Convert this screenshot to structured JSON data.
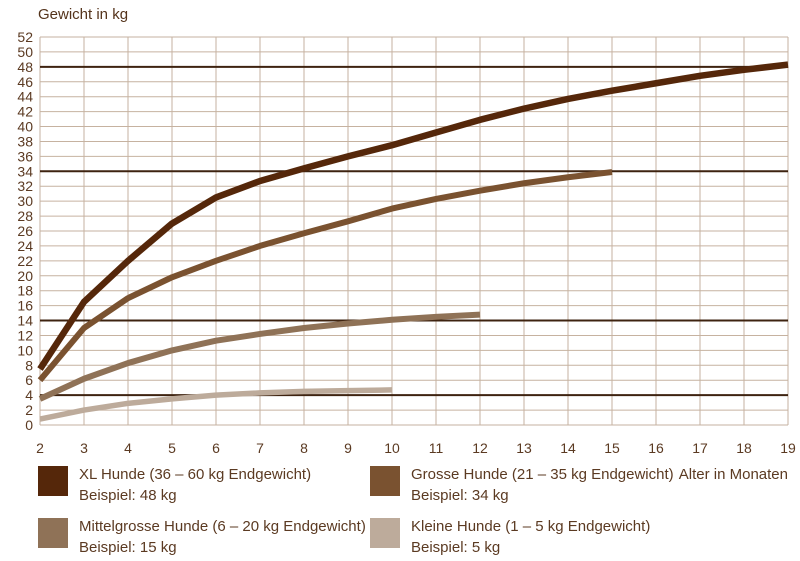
{
  "title": "Gewicht in kg",
  "x_axis_title": "Alter in Monaten",
  "colors": {
    "background": "#ffffff",
    "text": "#5b3a22",
    "grid": "#c6b2a0",
    "reference_line": "#3e2310"
  },
  "chart_data": {
    "type": "line",
    "title": "Gewicht in kg",
    "xlabel": "Alter in Monaten",
    "ylabel": "Gewicht in kg",
    "xlim": [
      2,
      19
    ],
    "ylim": [
      0,
      52
    ],
    "x_ticks": [
      2,
      3,
      4,
      5,
      6,
      7,
      8,
      9,
      10,
      11,
      12,
      13,
      14,
      15,
      16,
      17,
      18,
      19
    ],
    "y_tick_step": 2,
    "grid": true,
    "legend_position": "bottom",
    "reference_lines_kg": [
      48,
      34,
      14,
      4
    ],
    "series": [
      {
        "name": "XL Hunde (36 – 60 kg Endgewicht)",
        "example": "Beispiel: 48 kg",
        "final_weight_kg": 48,
        "color": "#55270a",
        "stroke_width": 6.5,
        "points": [
          [
            2,
            7.5
          ],
          [
            3,
            16.5
          ],
          [
            4,
            22
          ],
          [
            5,
            27
          ],
          [
            6,
            30.5
          ],
          [
            7,
            32.7
          ],
          [
            8,
            34.4
          ],
          [
            9,
            36
          ],
          [
            10,
            37.5
          ],
          [
            11,
            39.2
          ],
          [
            12,
            40.9
          ],
          [
            13,
            42.4
          ],
          [
            14,
            43.7
          ],
          [
            15,
            44.8
          ],
          [
            16,
            45.8
          ],
          [
            17,
            46.8
          ],
          [
            18,
            47.6
          ],
          [
            19,
            48.3
          ]
        ]
      },
      {
        "name": "Grosse Hunde (21 – 35 kg Endgewicht)",
        "example": "Beispiel: 34 kg",
        "final_weight_kg": 34,
        "color": "#7a5230",
        "stroke_width": 6,
        "points": [
          [
            2,
            6
          ],
          [
            3,
            13
          ],
          [
            4,
            17
          ],
          [
            5,
            19.8
          ],
          [
            6,
            22
          ],
          [
            7,
            24
          ],
          [
            8,
            25.7
          ],
          [
            9,
            27.3
          ],
          [
            10,
            29
          ],
          [
            11,
            30.3
          ],
          [
            12,
            31.4
          ],
          [
            13,
            32.4
          ],
          [
            14,
            33.2
          ],
          [
            15,
            33.9
          ]
        ]
      },
      {
        "name": "Mittelgrosse Hunde (6 – 20 kg Endgewicht)",
        "example": "Beispiel: 15 kg",
        "final_weight_kg": 15,
        "color": "#8f7257",
        "stroke_width": 6,
        "points": [
          [
            2,
            3.5
          ],
          [
            3,
            6.2
          ],
          [
            4,
            8.3
          ],
          [
            5,
            10
          ],
          [
            6,
            11.3
          ],
          [
            7,
            12.2
          ],
          [
            8,
            13
          ],
          [
            9,
            13.6
          ],
          [
            10,
            14.1
          ],
          [
            11,
            14.5
          ],
          [
            12,
            14.8
          ]
        ]
      },
      {
        "name": "Kleine Hunde (1 – 5 kg Endgewicht)",
        "example": "Beispiel: 5 kg",
        "final_weight_kg": 5,
        "color": "#bdab9b",
        "stroke_width": 5.5,
        "points": [
          [
            2,
            0.8
          ],
          [
            3,
            2
          ],
          [
            4,
            2.9
          ],
          [
            5,
            3.5
          ],
          [
            6,
            4
          ],
          [
            7,
            4.3
          ],
          [
            8,
            4.5
          ],
          [
            9,
            4.6
          ],
          [
            10,
            4.7
          ]
        ]
      }
    ]
  }
}
